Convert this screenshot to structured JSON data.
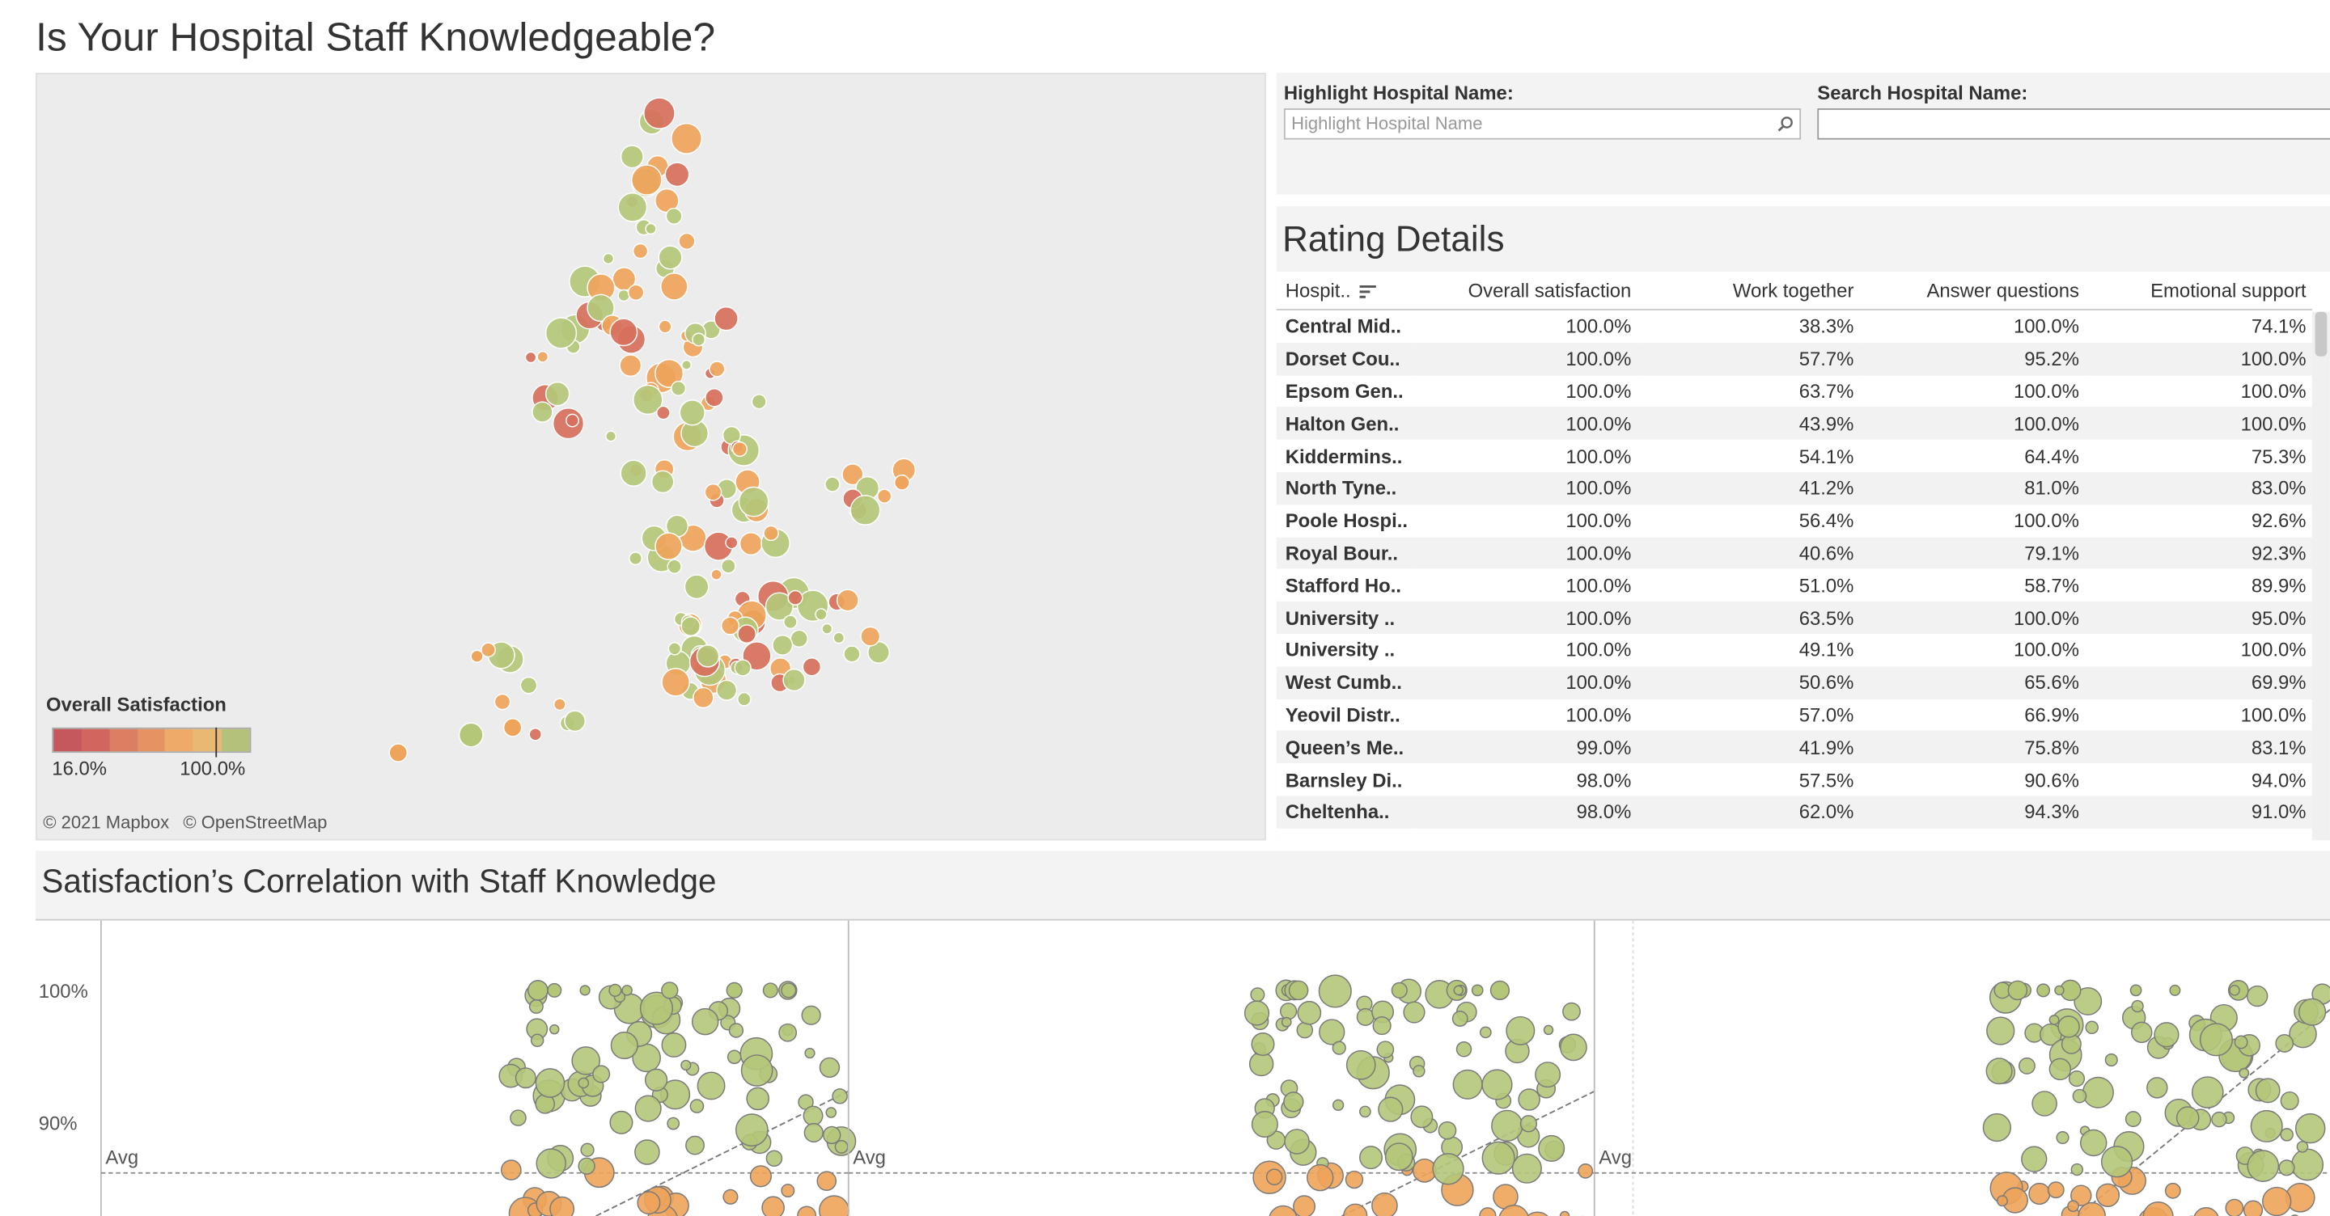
{
  "title": "Is Your Hospital Staff Knowledgeable?",
  "map": {
    "legend_title": "Overall Satisfaction",
    "legend_min": "16.0%",
    "legend_max": "100.0%",
    "legend_colors": [
      "#c5585d",
      "#d2655e",
      "#dc7e62",
      "#e79262",
      "#eeaa68",
      "#e9b873",
      "#b4c17a"
    ],
    "credits": [
      "© 2021 Mapbox",
      "© OpenStreetMap"
    ],
    "colors": {
      "green": "#b4c779",
      "orange": "#eea45a",
      "red": "#d7705c"
    }
  },
  "filters": {
    "highlight_label": "Highlight Hospital Name:",
    "highlight_placeholder": "Highlight Hospital Name",
    "search_label": "Search Hospital Name:",
    "search_value": ""
  },
  "rating": {
    "title": "Rating Details",
    "columns": [
      "Hospit..",
      "Overall satisfaction",
      "Work together",
      "Answer questions",
      "Emotional support"
    ],
    "rows": [
      [
        "Central Mid..",
        "100.0%",
        "38.3%",
        "100.0%",
        "74.1%"
      ],
      [
        "Dorset Cou..",
        "100.0%",
        "57.7%",
        "95.2%",
        "100.0%"
      ],
      [
        "Epsom Gen..",
        "100.0%",
        "63.7%",
        "100.0%",
        "100.0%"
      ],
      [
        "Halton Gen..",
        "100.0%",
        "43.9%",
        "100.0%",
        "100.0%"
      ],
      [
        "Kiddermins..",
        "100.0%",
        "54.1%",
        "64.4%",
        "75.3%"
      ],
      [
        "North Tyne..",
        "100.0%",
        "41.2%",
        "81.0%",
        "83.0%"
      ],
      [
        "Poole Hospi..",
        "100.0%",
        "56.4%",
        "100.0%",
        "92.6%"
      ],
      [
        "Royal Bour..",
        "100.0%",
        "40.6%",
        "79.1%",
        "92.3%"
      ],
      [
        "Stafford Ho..",
        "100.0%",
        "51.0%",
        "58.7%",
        "89.9%"
      ],
      [
        "University ..",
        "100.0%",
        "63.5%",
        "100.0%",
        "95.0%"
      ],
      [
        "University ..",
        "100.0%",
        "49.1%",
        "100.0%",
        "100.0%"
      ],
      [
        "West Cumb..",
        "100.0%",
        "50.6%",
        "65.6%",
        "69.9%"
      ],
      [
        "Yeovil Distr..",
        "100.0%",
        "57.0%",
        "66.9%",
        "100.0%"
      ],
      [
        "Queen’s Me..",
        "99.0%",
        "41.9%",
        "75.8%",
        "83.1%"
      ],
      [
        "Barnsley Di..",
        "98.0%",
        "57.5%",
        "90.6%",
        "94.0%"
      ],
      [
        "Cheltenha..",
        "98.0%",
        "62.0%",
        "94.3%",
        "91.0%"
      ]
    ]
  },
  "correlation": {
    "title": "Satisfaction’s Correlation with Staff Knowledge",
    "y_ticks": [
      "100%",
      "90%"
    ],
    "avg_label": "Avg"
  }
}
